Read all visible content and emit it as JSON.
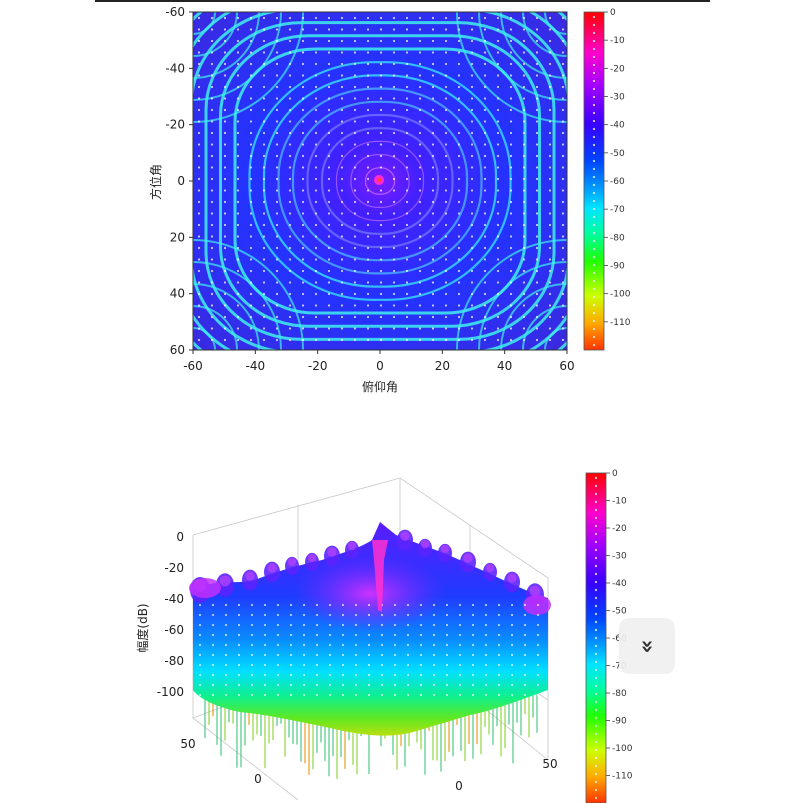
{
  "chart_data": [
    {
      "type": "heatmap",
      "title": "",
      "xlabel": "俯仰角",
      "ylabel": "方位角",
      "x_ticks": [
        "-60",
        "-40",
        "-20",
        "0",
        "20",
        "40",
        "60"
      ],
      "y_ticks": [
        "-60",
        "-40",
        "-20",
        "0",
        "20",
        "40",
        "60"
      ],
      "xlim": [
        -60,
        60
      ],
      "ylim": [
        -60,
        60
      ],
      "colorbar": {
        "range": [
          -120,
          0
        ],
        "ticks": [
          "0",
          "-10",
          "-20",
          "-30",
          "-40",
          "-50",
          "-60",
          "-70",
          "-80",
          "-90",
          "-100",
          "-110"
        ]
      },
      "peak": {
        "x": 0,
        "y": 0,
        "value": 0
      }
    },
    {
      "type": "surface",
      "title": "",
      "zlabel": "幅度(dB)",
      "z_ticks": [
        "0",
        "-20",
        "-40",
        "-60",
        "-80",
        "-100"
      ],
      "x_ticks": [
        "0",
        "50"
      ],
      "y_ticks": [
        "50",
        "0"
      ],
      "zlim": [
        -110,
        0
      ],
      "colorbar": {
        "range": [
          -120,
          0
        ],
        "ticks": [
          "0",
          "-10",
          "-20",
          "-30",
          "-40",
          "-50",
          "-60",
          "-70",
          "-80",
          "-90",
          "-100",
          "-110"
        ]
      },
      "peak": {
        "x": 0,
        "y": 0,
        "value": 0
      }
    }
  ],
  "ui": {
    "scroll_icon": "double-chevron-down-icon",
    "scroll_glyph": "»"
  }
}
